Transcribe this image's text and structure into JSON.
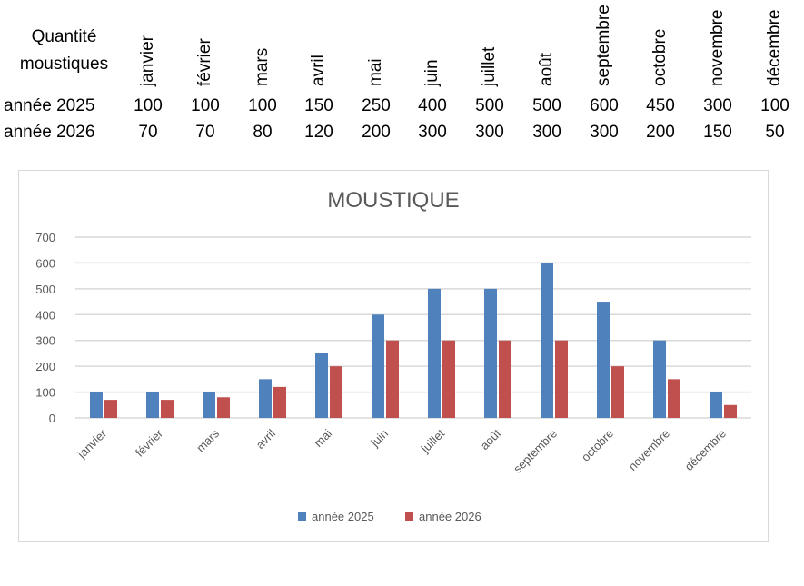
{
  "table": {
    "header_line1": "Quantité",
    "header_line2": "moustiques",
    "months": [
      "janvier",
      "février",
      "mars",
      "avril",
      "mai",
      "juin",
      "juillet",
      "août",
      "septembre",
      "octobre",
      "novembre",
      "décembre"
    ],
    "rows": [
      {
        "label": "année 2025",
        "values": [
          "100",
          "100",
          "100",
          "150",
          "250",
          "400",
          "500",
          "500",
          "600",
          "450",
          "300",
          "100"
        ]
      },
      {
        "label": "année 2026",
        "values": [
          "70",
          "70",
          "80",
          "120",
          "200",
          "300",
          "300",
          "300",
          "300",
          "200",
          "150",
          "50"
        ]
      }
    ]
  },
  "chart_data": {
    "type": "bar",
    "title": "MOUSTIQUE",
    "categories": [
      "janvier",
      "février",
      "mars",
      "avril",
      "mai",
      "juin",
      "juillet",
      "août",
      "septembre",
      "octobre",
      "novembre",
      "décembre"
    ],
    "series": [
      {
        "name": "année 2025",
        "color": "#4f81bd",
        "values": [
          100,
          100,
          100,
          150,
          250,
          400,
          500,
          500,
          600,
          450,
          300,
          100
        ]
      },
      {
        "name": "année 2026",
        "color": "#c0504d",
        "values": [
          70,
          70,
          80,
          120,
          200,
          300,
          300,
          300,
          300,
          200,
          150,
          50
        ]
      }
    ],
    "ylim": [
      0,
      700
    ],
    "yticks": [
      0,
      100,
      200,
      300,
      400,
      500,
      600,
      700
    ],
    "grid": true,
    "legend": "bottom"
  }
}
